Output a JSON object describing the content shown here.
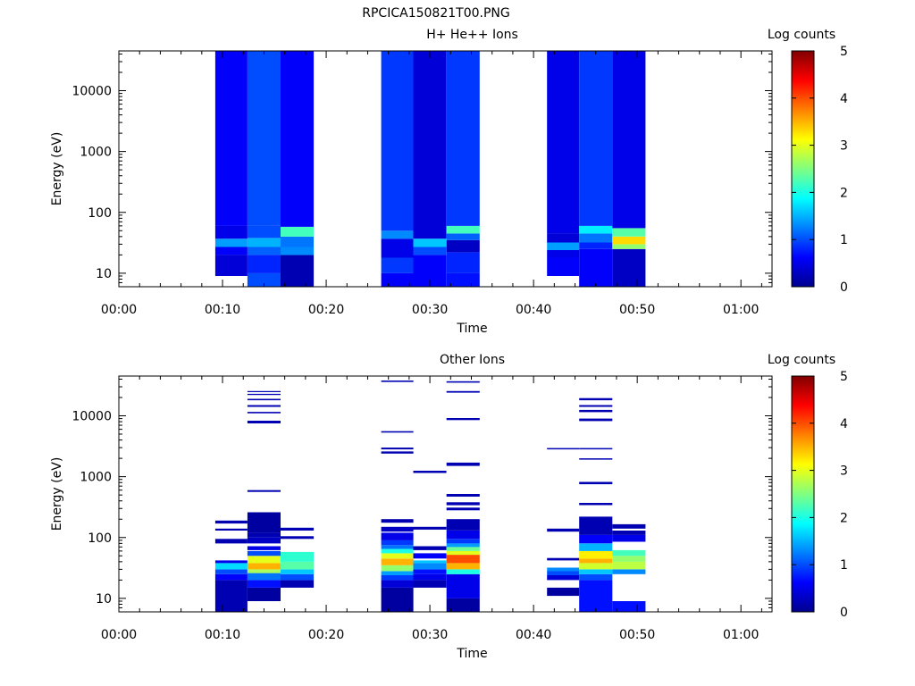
{
  "figure_title": "RPCICA150821T00.PNG",
  "colorscale": [
    "#00008f",
    "#0000ff",
    "#0080ff",
    "#00ffff",
    "#80ff80",
    "#ffff00",
    "#ff8000",
    "#ff0000",
    "#800000"
  ],
  "chart_data": [
    {
      "type": "heatmap",
      "title": "H+ He++ Ions",
      "xlabel": "Time",
      "ylabel": "Energy (eV)",
      "yscale": "log",
      "ylim": [
        6,
        45000
      ],
      "xlim_min": [
        0,
        63
      ],
      "x_tick_labels": [
        "00:00",
        "00:10",
        "00:20",
        "00:30",
        "00:40",
        "00:50",
        "01:00"
      ],
      "y_tick_labels": [
        "10",
        "100",
        "1000",
        "10000"
      ],
      "colorbar": {
        "label": "Log counts",
        "range": [
          0,
          5
        ],
        "tick_labels": [
          "0",
          "1",
          "2",
          "3",
          "4",
          "5"
        ]
      },
      "columns": [
        {
          "t_start": 9.3,
          "t_end": 12.4,
          "cells": [
            [
              9,
              20,
              0.4
            ],
            [
              20,
              27,
              0.6
            ],
            [
              27,
              37,
              1.4
            ],
            [
              37,
              60,
              0.5
            ],
            [
              60,
              45000,
              0.6
            ]
          ]
        },
        {
          "t_start": 12.4,
          "t_end": 15.6,
          "cells": [
            [
              6,
              10,
              1.0
            ],
            [
              10,
              20,
              0.8
            ],
            [
              20,
              27,
              1.1
            ],
            [
              27,
              38,
              1.5
            ],
            [
              38,
              60,
              1.0
            ],
            [
              60,
              45000,
              1.0
            ]
          ]
        },
        {
          "t_start": 15.6,
          "t_end": 18.8,
          "cells": [
            [
              6,
              20,
              0.2
            ],
            [
              20,
              27,
              1.3
            ],
            [
              27,
              40,
              1.2
            ],
            [
              40,
              58,
              2.2
            ],
            [
              58,
              45000,
              0.6
            ]
          ]
        },
        {
          "t_start": 25.3,
          "t_end": 28.4,
          "cells": [
            [
              6,
              10,
              0.6
            ],
            [
              10,
              18,
              0.9
            ],
            [
              18,
              37,
              0.5
            ],
            [
              37,
              50,
              1.3
            ],
            [
              50,
              45000,
              0.9
            ]
          ]
        },
        {
          "t_start": 28.4,
          "t_end": 31.6,
          "cells": [
            [
              6,
              20,
              0.6
            ],
            [
              20,
              27,
              1.0
            ],
            [
              27,
              37,
              1.6
            ],
            [
              37,
              45000,
              0.4
            ]
          ]
        },
        {
          "t_start": 31.6,
          "t_end": 34.8,
          "cells": [
            [
              6,
              10,
              0.7
            ],
            [
              10,
              22,
              0.8
            ],
            [
              22,
              35,
              0.3
            ],
            [
              35,
              45,
              1.1
            ],
            [
              45,
              60,
              2.2
            ],
            [
              60,
              45000,
              0.9
            ]
          ]
        },
        {
          "t_start": 41.3,
          "t_end": 44.4,
          "cells": [
            [
              9,
              18,
              0.6
            ],
            [
              18,
              24,
              0.5
            ],
            [
              24,
              32,
              1.4
            ],
            [
              32,
              45,
              0.4
            ],
            [
              45,
              45000,
              0.5
            ]
          ]
        },
        {
          "t_start": 44.4,
          "t_end": 47.6,
          "cells": [
            [
              6,
              25,
              0.6
            ],
            [
              25,
              32,
              0.8
            ],
            [
              32,
              45,
              1.2
            ],
            [
              45,
              60,
              1.8
            ],
            [
              60,
              45000,
              0.9
            ]
          ]
        },
        {
          "t_start": 47.6,
          "t_end": 50.8,
          "cells": [
            [
              6,
              25,
              0.3
            ],
            [
              25,
              30,
              2.6
            ],
            [
              30,
              40,
              3.3
            ],
            [
              40,
              55,
              2.3
            ],
            [
              55,
              45000,
              0.5
            ]
          ]
        }
      ]
    },
    {
      "type": "heatmap",
      "title": "Other Ions",
      "xlabel": "Time",
      "ylabel": "Energy (eV)",
      "yscale": "log",
      "ylim": [
        6,
        45000
      ],
      "xlim_min": [
        0,
        63
      ],
      "x_tick_labels": [
        "00:00",
        "00:10",
        "00:20",
        "00:30",
        "00:40",
        "00:50",
        "01:00"
      ],
      "y_tick_labels": [
        "10",
        "100",
        "1000",
        "10000"
      ],
      "colorbar": {
        "label": "Log counts",
        "range": [
          0,
          5
        ],
        "tick_labels": [
          "0",
          "1",
          "2",
          "3",
          "4",
          "5"
        ]
      },
      "columns": [
        {
          "t_start": 9.3,
          "t_end": 12.4,
          "cells": [
            [
              6,
              20,
              0.2
            ],
            [
              20,
              25,
              0.6
            ],
            [
              25,
              30,
              1.0
            ],
            [
              30,
              38,
              1.7
            ],
            [
              38,
              42,
              0.5
            ],
            [
              80,
              95,
              0.2
            ],
            [
              130,
              140,
              0.2
            ],
            [
              170,
              190,
              0.2
            ]
          ]
        },
        {
          "t_start": 12.4,
          "t_end": 15.6,
          "cells": [
            [
              9,
              15,
              0.1
            ],
            [
              15,
              20,
              0.7
            ],
            [
              20,
              26,
              1.2
            ],
            [
              26,
              30,
              2.7
            ],
            [
              30,
              38,
              3.5
            ],
            [
              38,
              50,
              3.0
            ],
            [
              50,
              60,
              1.0
            ],
            [
              62,
              72,
              0.5
            ],
            [
              80,
              100,
              0.3
            ],
            [
              100,
              120,
              0.2
            ],
            [
              120,
              260,
              0.1
            ],
            [
              560,
              600,
              0.2
            ],
            [
              7500,
              8300,
              0.2
            ],
            [
              11000,
              11600,
              0.2
            ],
            [
              14000,
              15000,
              0.2
            ],
            [
              18000,
              19000,
              0.2
            ],
            [
              22000,
              23000,
              0.2
            ],
            [
              24500,
              25500,
              0.2
            ]
          ]
        },
        {
          "t_start": 15.6,
          "t_end": 18.8,
          "cells": [
            [
              15,
              20,
              0.2
            ],
            [
              20,
              25,
              1.0
            ],
            [
              25,
              30,
              1.6
            ],
            [
              30,
              40,
              2.3
            ],
            [
              40,
              58,
              2.1
            ],
            [
              95,
              105,
              0.2
            ],
            [
              130,
              145,
              0.2
            ]
          ]
        },
        {
          "t_start": 25.3,
          "t_end": 28.4,
          "cells": [
            [
              6,
              15,
              0.1
            ],
            [
              15,
              20,
              0.4
            ],
            [
              20,
              24,
              0.9
            ],
            [
              24,
              28,
              1.4
            ],
            [
              28,
              35,
              2.6
            ],
            [
              35,
              45,
              3.5
            ],
            [
              45,
              55,
              3.0
            ],
            [
              55,
              65,
              2.0
            ],
            [
              65,
              75,
              1.2
            ],
            [
              75,
              90,
              0.9
            ],
            [
              90,
              120,
              0.5
            ],
            [
              125,
              150,
              0.3
            ],
            [
              175,
              200,
              0.2
            ],
            [
              2400,
              2600,
              0.2
            ],
            [
              2800,
              3000,
              0.2
            ],
            [
              5300,
              5600,
              0.2
            ],
            [
              36000,
              38000,
              0.2
            ]
          ]
        },
        {
          "t_start": 28.4,
          "t_end": 31.6,
          "cells": [
            [
              15,
              20,
              0.2
            ],
            [
              20,
              25,
              0.5
            ],
            [
              25,
              30,
              0.7
            ],
            [
              30,
              38,
              1.3
            ],
            [
              38,
              42,
              1.6
            ],
            [
              45,
              55,
              0.6
            ],
            [
              62,
              72,
              0.2
            ],
            [
              135,
              150,
              0.2
            ],
            [
              1150,
              1250,
              0.2
            ]
          ]
        },
        {
          "t_start": 31.6,
          "t_end": 34.8,
          "cells": [
            [
              6,
              10,
              0.1
            ],
            [
              10,
              25,
              0.5
            ],
            [
              25,
              30,
              2.0
            ],
            [
              30,
              38,
              3.5
            ],
            [
              38,
              52,
              4.0
            ],
            [
              52,
              60,
              3.0
            ],
            [
              60,
              70,
              2.4
            ],
            [
              70,
              80,
              1.4
            ],
            [
              80,
              95,
              0.9
            ],
            [
              95,
              130,
              0.5
            ],
            [
              130,
              200,
              0.2
            ],
            [
              280,
              310,
              0.2
            ],
            [
              340,
              380,
              0.2
            ],
            [
              470,
              520,
              0.2
            ],
            [
              1500,
              1700,
              0.2
            ],
            [
              8500,
              9200,
              0.2
            ],
            [
              24000,
              25500,
              0.2
            ],
            [
              35000,
              37000,
              0.2
            ]
          ]
        },
        {
          "t_start": 41.3,
          "t_end": 44.4,
          "cells": [
            [
              11,
              15,
              0.1
            ],
            [
              20,
              24,
              0.4
            ],
            [
              24,
              28,
              1.0
            ],
            [
              28,
              32,
              1.3
            ],
            [
              42,
              46,
              0.2
            ],
            [
              125,
              140,
              0.2
            ],
            [
              2800,
              2950,
              0.2
            ]
          ]
        },
        {
          "t_start": 44.4,
          "t_end": 47.6,
          "cells": [
            [
              6,
              20,
              0.7
            ],
            [
              20,
              25,
              1.0
            ],
            [
              25,
              30,
              1.6
            ],
            [
              30,
              38,
              2.9
            ],
            [
              38,
              45,
              3.5
            ],
            [
              45,
              60,
              3.2
            ],
            [
              60,
              80,
              1.5
            ],
            [
              80,
              110,
              0.6
            ],
            [
              110,
              220,
              0.2
            ],
            [
              340,
              370,
              0.2
            ],
            [
              750,
              820,
              0.2
            ],
            [
              1900,
              2000,
              0.2
            ],
            [
              2800,
              2950,
              0.2
            ],
            [
              8200,
              9000,
              0.2
            ],
            [
              11500,
              12500,
              0.2
            ],
            [
              14000,
              15000,
              0.2
            ],
            [
              18000,
              19500,
              0.2
            ]
          ]
        },
        {
          "t_start": 47.6,
          "t_end": 50.8,
          "cells": [
            [
              6,
              9,
              0.7
            ],
            [
              25,
              30,
              1.3
            ],
            [
              30,
              40,
              2.8
            ],
            [
              40,
              50,
              2.6
            ],
            [
              50,
              62,
              2.2
            ],
            [
              85,
              110,
              0.5
            ],
            [
              110,
              130,
              0.2
            ],
            [
              140,
              165,
              0.2
            ]
          ]
        }
      ]
    }
  ]
}
